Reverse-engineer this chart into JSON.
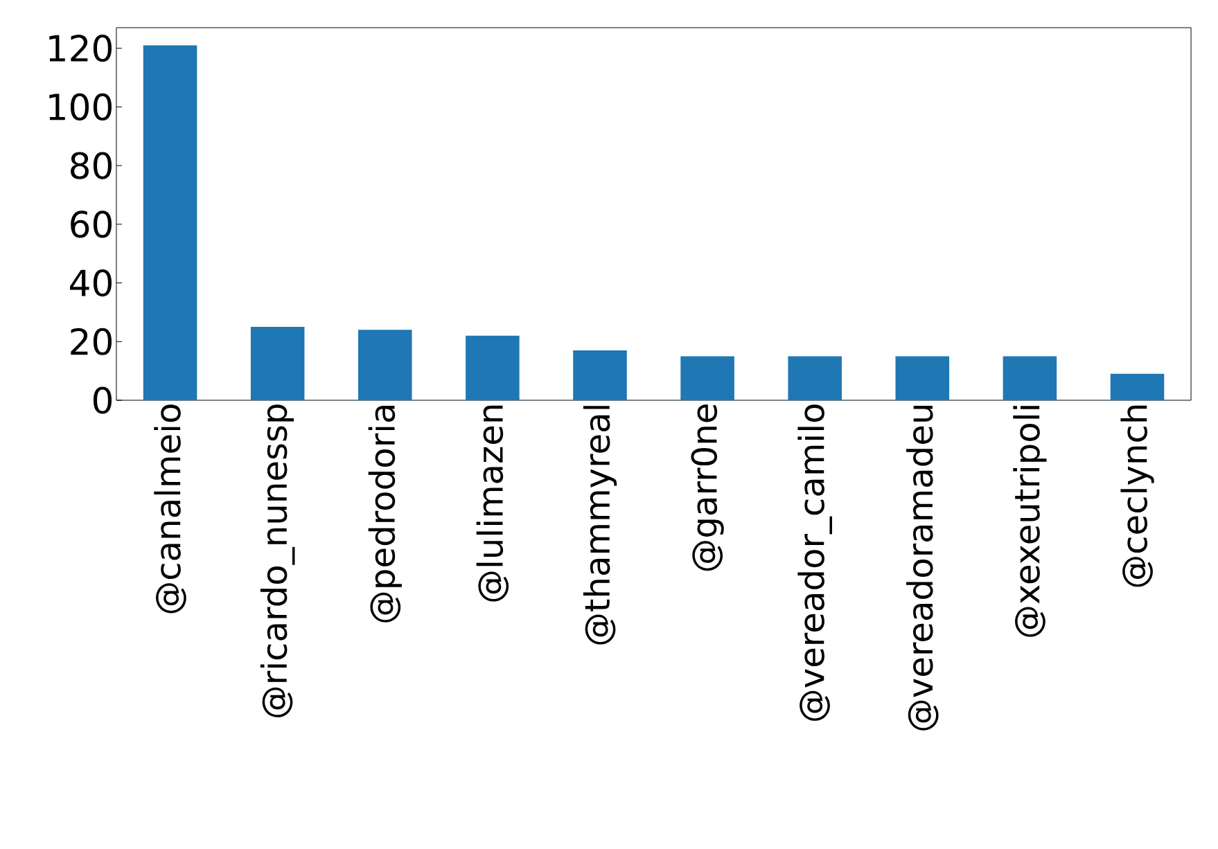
{
  "chart_data": {
    "type": "bar",
    "categories": [
      "@canalmeio",
      "@ricardo_nunessp",
      "@pedrodoria",
      "@lulimazen",
      "@thammyreal",
      "@garr0ne",
      "@vereador_camilo",
      "@vereadoramadeu",
      "@xexeutripoli",
      "@ceclynch"
    ],
    "values": [
      121,
      25,
      24,
      22,
      17,
      15,
      15,
      15,
      15,
      9
    ],
    "color": "#1f77b4",
    "ylim": [
      0,
      127
    ],
    "yticks": [
      0,
      20,
      40,
      60,
      80,
      100,
      120
    ]
  }
}
